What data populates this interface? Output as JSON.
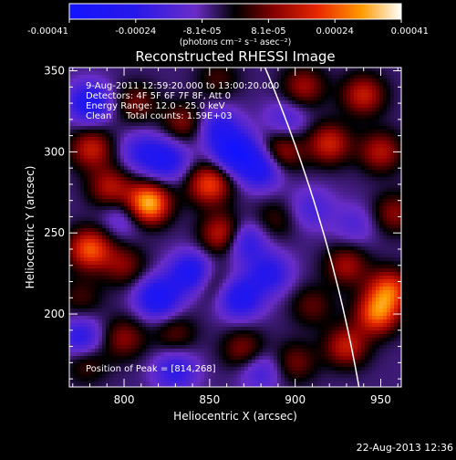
{
  "chart_data": {
    "type": "heatmap",
    "title": "Reconstructed RHESSI Image",
    "xlabel": "Heliocentric X (arcsec)",
    "ylabel": "Heliocentric Y (arcsec)",
    "xlim": [
      768,
      962
    ],
    "ylim": [
      155,
      352
    ],
    "xticks": [
      800,
      850,
      900,
      950
    ],
    "yticks": [
      200,
      250,
      300,
      350
    ],
    "colorbar": {
      "ticks": [
        "-0.00041",
        "-0.00024",
        "-8.1e-05",
        "8.1e-05",
        "0.00024",
        "0.00041"
      ],
      "units": "(photons cm⁻² s⁻¹ asec⁻²)",
      "range": [
        -0.00041,
        0.00041
      ]
    },
    "annotations": [
      "9-Aug-2011 12:59:20.000 to 13:00:20.000",
      "Detectors: 4F 5F 6F 7F 8F, Att 0",
      "Energy Range: 12.0 - 25.0 keV",
      "Clean     Total counts: 1.59E+03"
    ],
    "peak_label": "Position of Peak = [814,268]",
    "peak": [
      814,
      268
    ],
    "blobs": [
      {
        "x": 814,
        "y": 268,
        "v": 0.00041
      },
      {
        "x": 792,
        "y": 278,
        "v": 0.0002
      },
      {
        "x": 781,
        "y": 302,
        "v": 0.00022
      },
      {
        "x": 835,
        "y": 318,
        "v": 0.00016
      },
      {
        "x": 807,
        "y": 330,
        "v": 0.00014
      },
      {
        "x": 850,
        "y": 280,
        "v": 0.00028
      },
      {
        "x": 858,
        "y": 249,
        "v": 0.00026
      },
      {
        "x": 780,
        "y": 240,
        "v": 0.0003
      },
      {
        "x": 800,
        "y": 230,
        "v": 0.00015
      },
      {
        "x": 850,
        "y": 220,
        "v": 0.00014
      },
      {
        "x": 888,
        "y": 258,
        "v": 0.0001
      },
      {
        "x": 892,
        "y": 300,
        "v": 0.0002
      },
      {
        "x": 920,
        "y": 305,
        "v": 0.00023
      },
      {
        "x": 950,
        "y": 300,
        "v": 0.0002
      },
      {
        "x": 940,
        "y": 335,
        "v": 0.00022
      },
      {
        "x": 905,
        "y": 340,
        "v": 0.00018
      },
      {
        "x": 958,
        "y": 262,
        "v": 0.00016
      },
      {
        "x": 955,
        "y": 215,
        "v": 0.00028
      },
      {
        "x": 948,
        "y": 200,
        "v": 0.0003
      },
      {
        "x": 930,
        "y": 230,
        "v": 0.00018
      },
      {
        "x": 930,
        "y": 180,
        "v": 0.00022
      },
      {
        "x": 910,
        "y": 205,
        "v": 0.00012
      },
      {
        "x": 775,
        "y": 210,
        "v": 0.0001
      },
      {
        "x": 800,
        "y": 185,
        "v": 0.00016
      },
      {
        "x": 830,
        "y": 188,
        "v": 0.00012
      },
      {
        "x": 870,
        "y": 178,
        "v": 0.00016
      },
      {
        "x": 900,
        "y": 170,
        "v": 0.00014
      },
      {
        "x": 778,
        "y": 170,
        "v": 0.00012
      },
      {
        "x": 855,
        "y": 345,
        "v": 0.0001
      },
      {
        "x": 865,
        "y": 300,
        "v": -0.0003
      },
      {
        "x": 880,
        "y": 290,
        "v": -0.00025
      },
      {
        "x": 825,
        "y": 295,
        "v": -0.00022
      },
      {
        "x": 855,
        "y": 315,
        "v": -0.00018
      },
      {
        "x": 840,
        "y": 225,
        "v": -0.0003
      },
      {
        "x": 820,
        "y": 210,
        "v": -0.00028
      },
      {
        "x": 868,
        "y": 210,
        "v": -0.00025
      },
      {
        "x": 870,
        "y": 245,
        "v": -0.00022
      },
      {
        "x": 885,
        "y": 225,
        "v": -0.0002
      },
      {
        "x": 780,
        "y": 330,
        "v": -0.00025
      },
      {
        "x": 775,
        "y": 185,
        "v": -0.0002
      },
      {
        "x": 800,
        "y": 260,
        "v": -0.00012
      },
      {
        "x": 910,
        "y": 265,
        "v": -0.00012
      },
      {
        "x": 935,
        "y": 255,
        "v": -0.0001
      },
      {
        "x": 830,
        "y": 165,
        "v": -0.00018
      },
      {
        "x": 880,
        "y": 165,
        "v": -0.00014
      },
      {
        "x": 810,
        "y": 300,
        "v": -0.00015
      },
      {
        "x": 895,
        "y": 320,
        "v": -0.00012
      }
    ],
    "limb_circle": {
      "center": [
        0,
        0
      ],
      "radius": 950
    }
  },
  "timestamp": "22-Aug-2013 12:36"
}
